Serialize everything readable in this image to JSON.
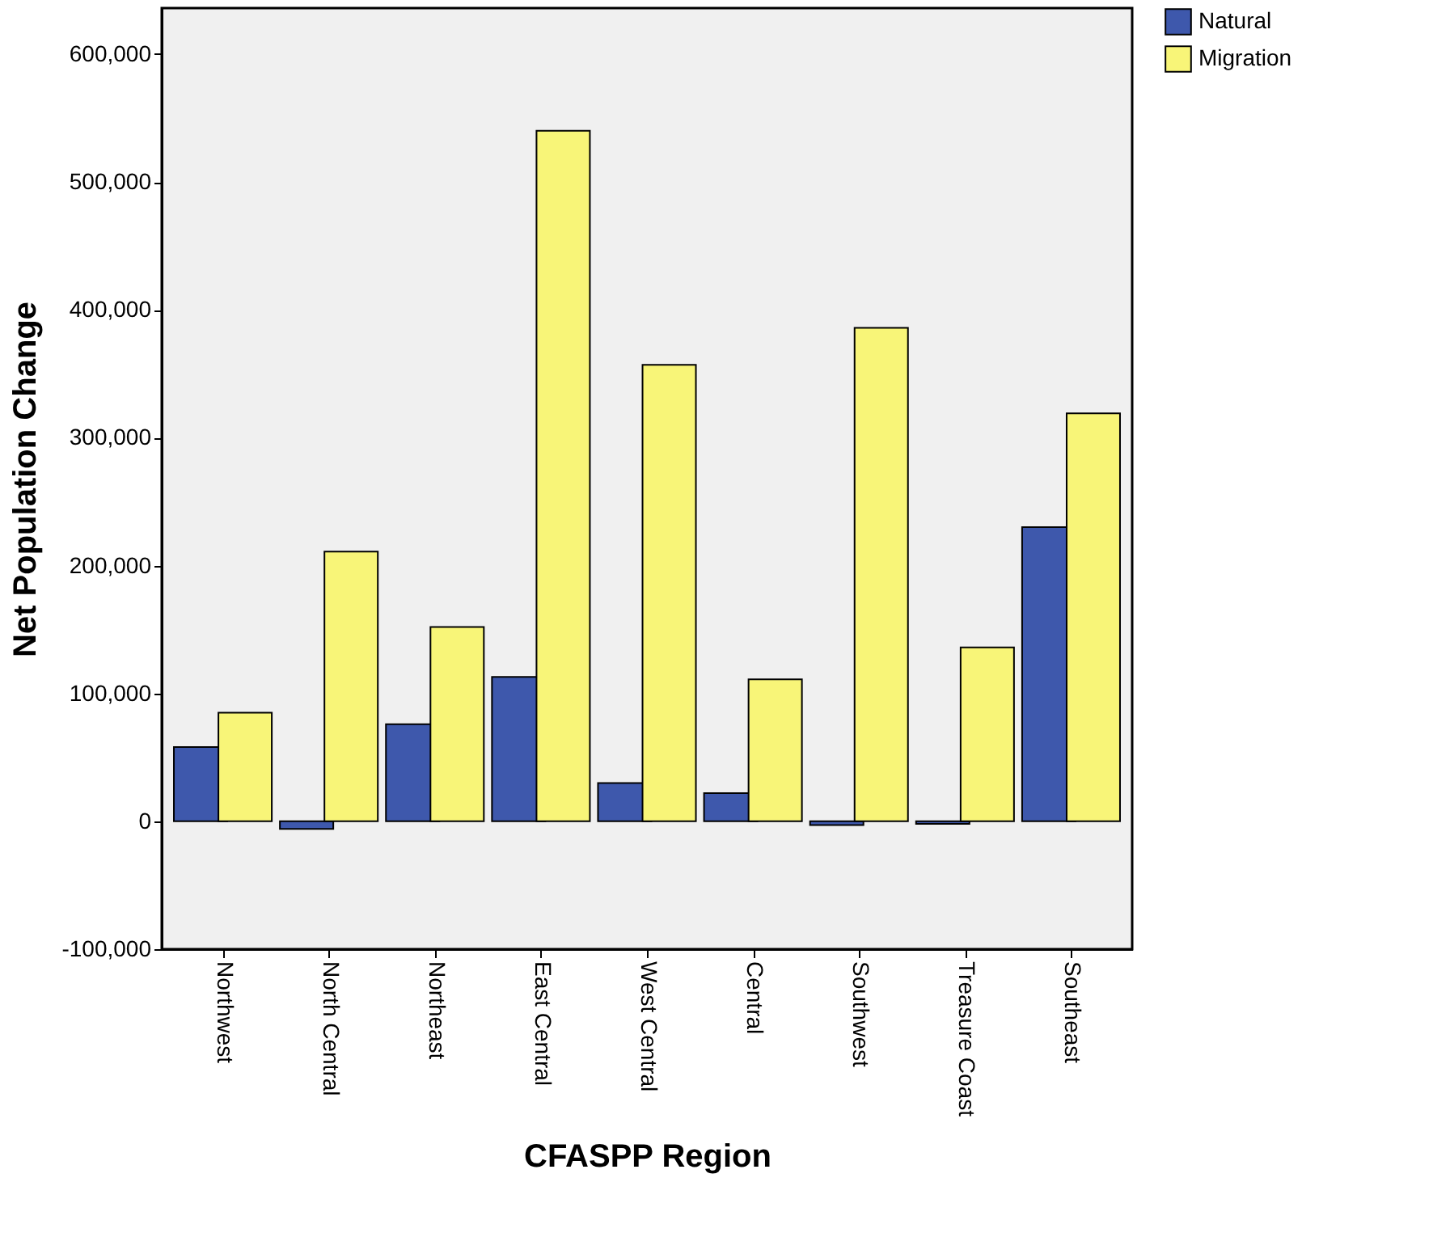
{
  "chart_data": {
    "type": "bar",
    "xlabel": "CFASPP Region",
    "ylabel": "Net Population Change",
    "categories": [
      "Northwest",
      "North Central",
      "Northeast",
      "East Central",
      "West Central",
      "Central",
      "Southwest",
      "Treasure Coast",
      "Southeast"
    ],
    "series": [
      {
        "name": "Natural",
        "color": "#3e58ac",
        "values": [
          58000,
          -6000,
          76000,
          113000,
          30000,
          22000,
          -3000,
          -2000,
          230000
        ]
      },
      {
        "name": "Migration",
        "color": "#f8f578",
        "values": [
          85000,
          211000,
          152000,
          540000,
          357000,
          111000,
          386000,
          136000,
          319000
        ]
      }
    ],
    "ylim": [
      -100000,
      636000
    ],
    "yticks": [
      {
        "value": -100000,
        "label": "-100,000"
      },
      0,
      {
        "value": 100000,
        "label": "100,000"
      },
      {
        "value": 200000,
        "label": "200,000"
      },
      {
        "value": 300000,
        "label": "300,000"
      },
      {
        "value": 400000,
        "label": "400,000"
      },
      {
        "value": 500000,
        "label": "500,000"
      },
      {
        "value": 600000,
        "label": "600,000"
      }
    ],
    "grid": false,
    "legend": "top right"
  }
}
